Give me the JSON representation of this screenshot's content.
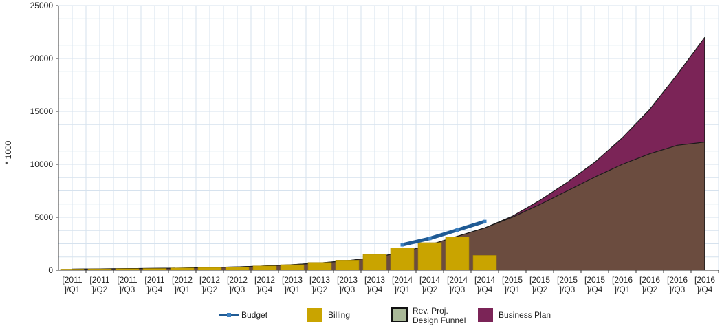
{
  "chart_data": {
    "type": "bar",
    "ylabel": "* 1000",
    "ylim": [
      0,
      25000
    ],
    "y_ticks": [
      "0",
      "5000",
      "10000",
      "15000",
      "20000",
      "25000"
    ],
    "grid": true,
    "legend_position": "bottom",
    "categories": [
      [
        "[2011",
        "]/Q1"
      ],
      [
        "[2011",
        "]/Q2"
      ],
      [
        "[2011",
        "]/Q3"
      ],
      [
        "[2011",
        "]/Q4"
      ],
      [
        "[2012",
        "]/Q1"
      ],
      [
        "[2012",
        "]/Q2"
      ],
      [
        "[2012",
        "]/Q3"
      ],
      [
        "[2012",
        "]/Q4"
      ],
      [
        "[2013",
        "]/Q1"
      ],
      [
        "[2013",
        "]/Q2"
      ],
      [
        "[2013",
        "]/Q3"
      ],
      [
        "[2013",
        "]/Q4"
      ],
      [
        "[2014",
        "]/Q1"
      ],
      [
        "[2014",
        "]/Q2"
      ],
      [
        "[2014",
        "]/Q3"
      ],
      [
        "[2014",
        "]/Q4"
      ],
      [
        "[2015",
        "]/Q1"
      ],
      [
        "[2015",
        "]/Q2"
      ],
      [
        "[2015",
        "]/Q3"
      ],
      [
        "[2015",
        "]/Q4"
      ],
      [
        "[2016",
        "]/Q1"
      ],
      [
        "[2016",
        "]/Q2"
      ],
      [
        "[2016",
        "]/Q3"
      ],
      [
        "[2016",
        "]/Q4"
      ]
    ],
    "series": [
      {
        "name": "Business Plan",
        "kind": "area",
        "color": "#7b2457",
        "values": [
          100,
          120,
          150,
          170,
          200,
          250,
          310,
          400,
          520,
          680,
          900,
          1200,
          1700,
          2400,
          3200,
          4000,
          5100,
          6600,
          8300,
          10200,
          12500,
          15200,
          18500,
          22000
        ]
      },
      {
        "name": "Rev. Proj. Design Funnel",
        "kind": "area",
        "color": "#6b4c3f",
        "legend_color": "#a9b898",
        "values": [
          100,
          120,
          150,
          170,
          200,
          250,
          310,
          400,
          520,
          680,
          900,
          1200,
          1700,
          2400,
          3200,
          4000,
          5000,
          6200,
          7500,
          8800,
          10000,
          11000,
          11800,
          12100
        ]
      },
      {
        "name": "Billing",
        "kind": "bar",
        "color": "#c9a400",
        "values": [
          100,
          120,
          140,
          160,
          210,
          250,
          300,
          400,
          520,
          730,
          950,
          1500,
          2100,
          2600,
          3150,
          1400,
          null,
          null,
          null,
          null,
          null,
          null,
          null,
          null
        ]
      },
      {
        "name": "Budget",
        "kind": "line",
        "color": "#1f5a94",
        "values": [
          null,
          null,
          null,
          null,
          null,
          null,
          null,
          null,
          null,
          null,
          null,
          null,
          2400,
          3000,
          3800,
          4600,
          null,
          null,
          null,
          null,
          null,
          null,
          null,
          null
        ]
      }
    ]
  }
}
